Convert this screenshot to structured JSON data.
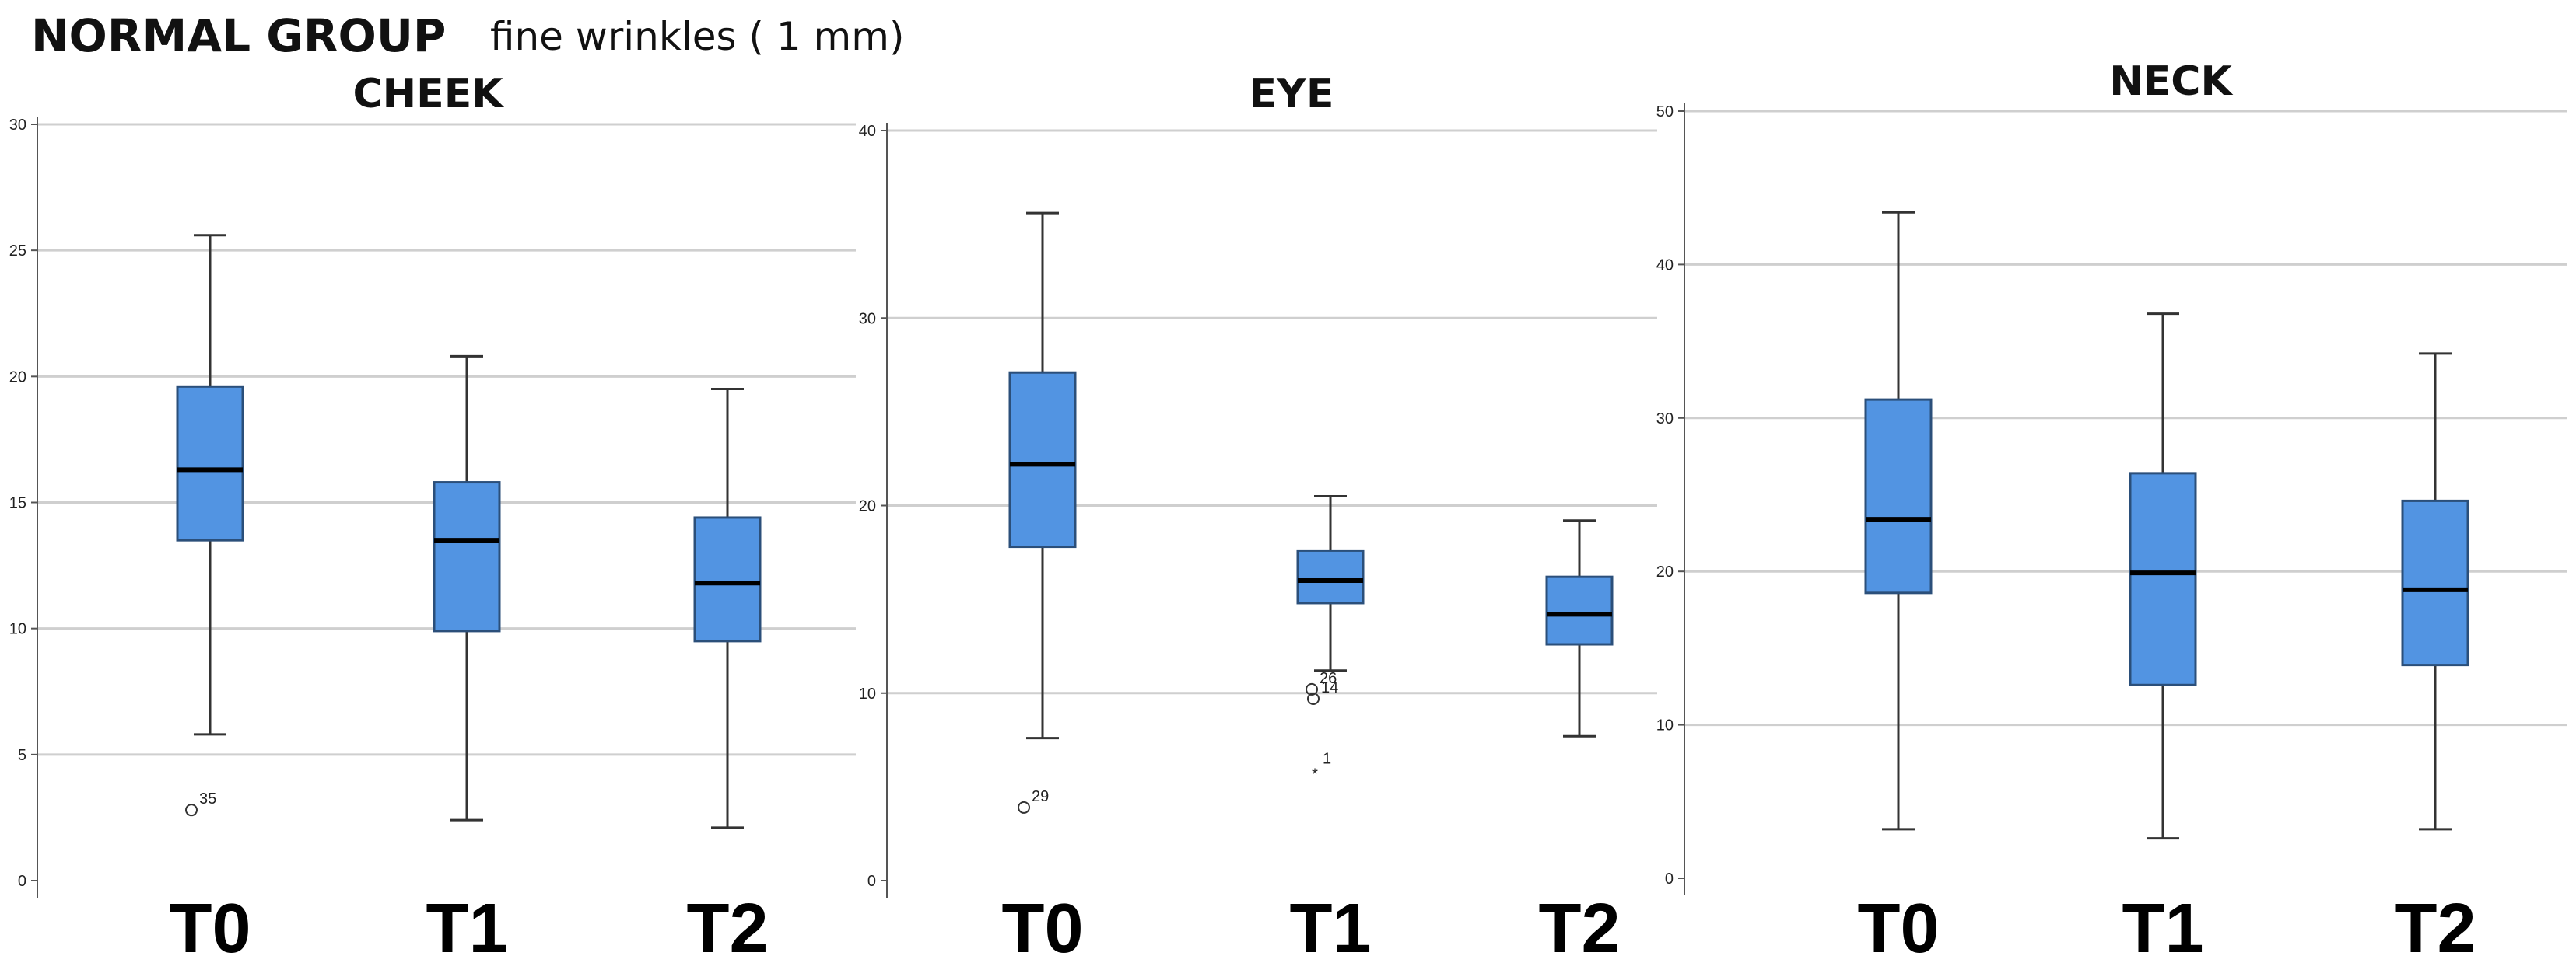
{
  "header": {
    "group_title": "NORMAL GROUP",
    "subtitle": "fine wrinkles ( 1 mm)"
  },
  "colors": {
    "box_fill": "#5294e2",
    "box_stroke": "#2b4f7a",
    "median": "#000000",
    "grid": "#cfcfcf",
    "axis": "#555555"
  },
  "chart_data": [
    {
      "type": "boxplot",
      "title": "CHEEK",
      "categories": [
        "T0",
        "T1",
        "T2"
      ],
      "ylim": [
        0,
        30
      ],
      "yticks": [
        0,
        5,
        10,
        15,
        20,
        25,
        30
      ],
      "grid": true,
      "boxes": [
        {
          "category": "T0",
          "whisker_low": 5.8,
          "q1": 13.5,
          "median": 16.3,
          "q3": 19.6,
          "whisker_high": 25.6,
          "outliers": [
            {
              "value": 2.8,
              "label": "35",
              "marker": "circle"
            }
          ]
        },
        {
          "category": "T1",
          "whisker_low": 2.4,
          "q1": 9.9,
          "median": 13.5,
          "q3": 15.8,
          "whisker_high": 20.8,
          "outliers": []
        },
        {
          "category": "T2",
          "whisker_low": 2.1,
          "q1": 9.5,
          "median": 11.8,
          "q3": 14.4,
          "whisker_high": 19.5,
          "outliers": []
        }
      ]
    },
    {
      "type": "boxplot",
      "title": "EYE",
      "categories": [
        "T0",
        "T1",
        "T2"
      ],
      "ylim": [
        0,
        40
      ],
      "yticks": [
        0,
        10,
        20,
        30,
        40
      ],
      "grid": true,
      "boxes": [
        {
          "category": "T0",
          "whisker_low": 7.6,
          "q1": 17.8,
          "median": 22.2,
          "q3": 27.1,
          "whisker_high": 35.6,
          "outliers": [
            {
              "value": 3.9,
              "label": "29",
              "marker": "circle"
            }
          ]
        },
        {
          "category": "T1",
          "whisker_low": 11.2,
          "q1": 14.8,
          "median": 16.0,
          "q3": 17.6,
          "whisker_high": 20.5,
          "outliers": [
            {
              "value": 10.2,
              "label": "26",
              "marker": "circle"
            },
            {
              "value": 9.7,
              "label": "14",
              "marker": "circle"
            },
            {
              "value": 5.9,
              "label": "1",
              "marker": "star"
            }
          ]
        },
        {
          "category": "T2",
          "whisker_low": 7.7,
          "q1": 12.6,
          "median": 14.2,
          "q3": 16.2,
          "whisker_high": 19.2,
          "outliers": []
        }
      ]
    },
    {
      "type": "boxplot",
      "title": "NECK",
      "categories": [
        "T0",
        "T1",
        "T2"
      ],
      "ylim": [
        0,
        50
      ],
      "yticks": [
        0,
        10,
        20,
        30,
        40,
        50
      ],
      "grid": true,
      "boxes": [
        {
          "category": "T0",
          "whisker_low": 3.2,
          "q1": 18.6,
          "median": 23.4,
          "q3": 31.2,
          "whisker_high": 43.4,
          "outliers": []
        },
        {
          "category": "T1",
          "whisker_low": 2.6,
          "q1": 12.6,
          "median": 19.9,
          "q3": 26.4,
          "whisker_high": 36.8,
          "outliers": []
        },
        {
          "category": "T2",
          "whisker_low": 3.2,
          "q1": 13.9,
          "median": 18.8,
          "q3": 24.6,
          "whisker_high": 34.2,
          "outliers": []
        }
      ]
    }
  ]
}
